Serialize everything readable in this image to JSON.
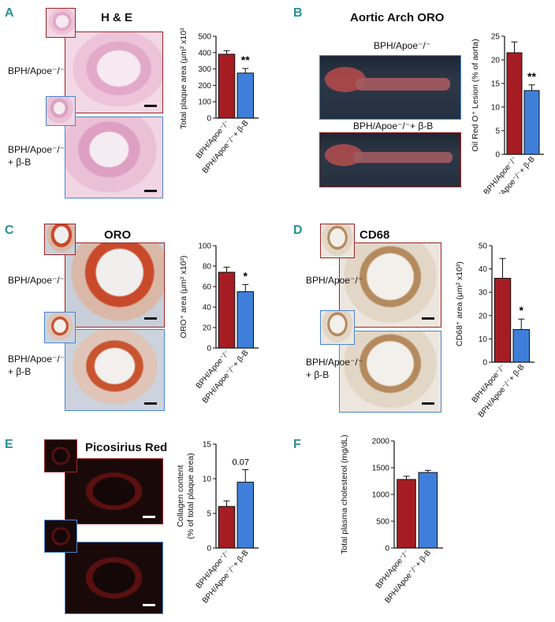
{
  "panels": {
    "A": {
      "letter": "A",
      "title": "H & E",
      "group1": "BPH/Apoe⁻/⁻",
      "group2_line1": "BPH/Apoe⁻/⁻",
      "group2_line2": "+ β-B"
    },
    "B": {
      "letter": "B",
      "title": "Aortic Arch ORO",
      "group1": "BPH/Apoe⁻/⁻",
      "group2": "BPH/Apoe⁻/⁻+ β-B"
    },
    "C": {
      "letter": "C",
      "title": "ORO",
      "group1": "BPH/Apoe⁻/⁻",
      "group2_line1": "BPH/Apoe⁻/⁻",
      "group2_line2": "+ β-B"
    },
    "D": {
      "letter": "D",
      "title": "CD68",
      "group1": "BPH/Apoe⁻/⁻",
      "group2_line1": "BPH/Apoe⁻/⁻",
      "group2_line2": "+ β-B"
    },
    "E": {
      "letter": "E",
      "title": "Picosirius Red"
    },
    "F": {
      "letter": "F"
    }
  },
  "colors": {
    "group1": "#a51d22",
    "group2": "#3f7fd9",
    "teal_label": "#2a8f93",
    "red_border": "#9e2424",
    "blue_border": "#4a86cf"
  },
  "chart_data": [
    {
      "id": "A",
      "type": "bar",
      "categories": [
        "BPH/Apoe⁻/⁻",
        "BPH/Apoe⁻/⁻+ β-B"
      ],
      "values": [
        390,
        275
      ],
      "errors": [
        22,
        28
      ],
      "ylim": [
        0,
        500
      ],
      "yticks": [
        0,
        100,
        200,
        300,
        400,
        500
      ],
      "ylabel": "Total plaque area (μm² x10³)",
      "annotation": "**"
    },
    {
      "id": "B",
      "type": "bar",
      "categories": [
        "BPH/Apoe⁻/⁻",
        "BPH/Apoe⁻/⁻+ β-B"
      ],
      "values": [
        21.5,
        13.5
      ],
      "errors": [
        2.3,
        1.2
      ],
      "ylim": [
        0,
        25
      ],
      "yticks": [
        0,
        5,
        10,
        15,
        20,
        25
      ],
      "ylabel": "Oil Red O⁺ Lesion (% of aorta)",
      "annotation": "**"
    },
    {
      "id": "C",
      "type": "bar",
      "categories": [
        "BPH/Apoe⁻/⁻",
        "BPH/Apoe⁻/⁻+ β-B"
      ],
      "values": [
        74,
        55
      ],
      "errors": [
        5,
        7
      ],
      "ylim": [
        0,
        100
      ],
      "yticks": [
        0,
        20,
        40,
        60,
        80,
        100
      ],
      "ylabel": "ORO⁺ area (μm² x10³)",
      "annotation": "*"
    },
    {
      "id": "D",
      "type": "bar",
      "categories": [
        "BPH/Apoe⁻/⁻",
        "BPH/Apoe⁻/⁻+ β-B"
      ],
      "values": [
        36,
        14
      ],
      "errors": [
        8.5,
        4.5
      ],
      "ylim": [
        0,
        50
      ],
      "yticks": [
        0,
        10,
        20,
        30,
        40,
        50
      ],
      "ylabel": "CD68⁺ area (μm² x10³)",
      "annotation": "*"
    },
    {
      "id": "E",
      "type": "bar",
      "categories": [
        "BPH/Apoe⁻/⁻",
        "BPH/Apoe⁻/⁻+ β-B"
      ],
      "values": [
        6,
        9.5
      ],
      "errors": [
        0.8,
        1.8
      ],
      "ylim": [
        0,
        15
      ],
      "yticks": [
        0,
        5,
        10,
        15
      ],
      "ylabel": "Collagen content",
      "ylabel2": "(% of total plaque area)",
      "annotation": "0.07"
    },
    {
      "id": "F",
      "type": "bar",
      "categories": [
        "BPH/Apoe⁻/⁻",
        "BPH/Apoe⁻/⁻+ β-B"
      ],
      "values": [
        1280,
        1410
      ],
      "errors": [
        60,
        40
      ],
      "ylim": [
        0,
        2000
      ],
      "yticks": [
        0,
        500,
        1000,
        1500,
        2000
      ],
      "ylabel": "Total plasma cholesterol (mg/dL)",
      "annotation": ""
    }
  ]
}
